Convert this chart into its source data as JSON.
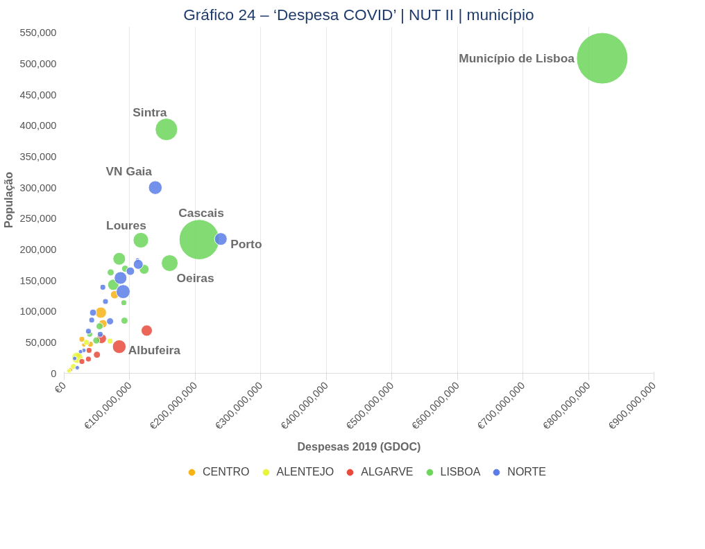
{
  "chart_data": {
    "type": "bubble",
    "title": "Gráfico 24 – ‘Despesa COVID’ | NUT II | município",
    "xlabel": "Despesas 2019 (GDOC)",
    "ylabel": "População",
    "xlim": [
      0,
      900000000
    ],
    "ylim": [
      0,
      560000
    ],
    "xticks": [
      {
        "value": 0,
        "label": "€0"
      },
      {
        "value": 100000000,
        "label": "€100,000,000"
      },
      {
        "value": 200000000,
        "label": "€200,000,000"
      },
      {
        "value": 300000000,
        "label": "€300,000,000"
      },
      {
        "value": 400000000,
        "label": "€400,000,000"
      },
      {
        "value": 500000000,
        "label": "€500,000,000"
      },
      {
        "value": 600000000,
        "label": "€600,000,000"
      },
      {
        "value": 700000000,
        "label": "€700,000,000"
      },
      {
        "value": 800000000,
        "label": "€800,000,000"
      },
      {
        "value": 900000000,
        "label": "€900,000,000"
      }
    ],
    "yticks": [
      0,
      {
        "value": 50000,
        "label": "50,000"
      },
      {
        "value": 100000,
        "label": "100,000"
      },
      {
        "value": 150000,
        "label": "150,000"
      },
      {
        "value": 200000,
        "label": "200,000"
      },
      {
        "value": 250000,
        "label": "250,000"
      },
      {
        "value": 300000,
        "label": "300,000"
      },
      {
        "value": 350000,
        "label": "350,000"
      },
      {
        "value": 400000,
        "label": "400,000"
      },
      {
        "value": 450000,
        "label": "450,000"
      },
      {
        "value": 500000,
        "label": "500,000"
      },
      {
        "value": 550000,
        "label": "550,000"
      }
    ],
    "grid": "x",
    "legend": "bottom",
    "series": [
      {
        "name": "CENTRO",
        "color": "#f5b316",
        "x": [
          77000000,
          56000000,
          59000000,
          27000000,
          30000000,
          10000000,
          40000000,
          22000000
        ],
        "values": [
          127000,
          98000,
          80000,
          55000,
          46000,
          6000,
          47000,
          29000
        ],
        "sizes": [
          0.026,
          0.047,
          0.026,
          0.012,
          0.007,
          0.007,
          0.012,
          0.007
        ]
      },
      {
        "name": "ALENTEJO",
        "color": "#e8f53a",
        "x": [
          70000000,
          20000000,
          14000000,
          7000000,
          34000000
        ],
        "values": [
          52000,
          25000,
          11000,
          4000,
          50000
        ],
        "sizes": [
          0.012,
          0.047,
          0.012,
          0.007,
          0.012
        ]
      },
      {
        "name": "ALGARVE",
        "color": "#e84a3c",
        "x": [
          84000000,
          126000000,
          57000000,
          50000000,
          37000000,
          38000000,
          27000000
        ],
        "values": [
          43000,
          69000,
          56000,
          30000,
          23000,
          37000,
          19000
        ],
        "sizes": [
          0.07,
          0.047,
          0.036,
          0.018,
          0.012,
          0.012,
          0.012
        ]
      },
      {
        "name": "LISBOA",
        "color": "#6cd65a",
        "x": [
          821000000,
          156000000,
          206000000,
          117000000,
          161000000,
          84000000,
          122000000,
          93000000,
          71000000,
          75000000,
          91000000,
          92000000,
          54000000,
          49000000,
          39000000
        ],
        "values": [
          509000,
          394000,
          216000,
          215000,
          178000,
          185000,
          168000,
          169000,
          163000,
          143000,
          114000,
          85000,
          76000,
          53000,
          63000
        ],
        "sizes": [
          1,
          0.19,
          0.61,
          0.09,
          0.105,
          0.06,
          0.036,
          0.018,
          0.018,
          0.047,
          0.012,
          0.018,
          0.018,
          0.018,
          0.012
        ]
      },
      {
        "name": "NORTE",
        "color": "#5b7ce8",
        "x": [
          139000000,
          239000000,
          112000000,
          113000000,
          101000000,
          86000000,
          59000000,
          90000000,
          63000000,
          44000000,
          42000000,
          70000000,
          55000000,
          37000000,
          30000000,
          16000000,
          20000000,
          25000000
        ],
        "values": [
          300000,
          217000,
          183000,
          176000,
          165000,
          154000,
          139000,
          132000,
          116000,
          98000,
          86000,
          84000,
          63000,
          68000,
          37000,
          24000,
          9000,
          35000
        ],
        "sizes": [
          0.07,
          0.06,
          0.007,
          0.036,
          0.026,
          0.06,
          0.012,
          0.073,
          0.012,
          0.018,
          0.012,
          0.018,
          0.012,
          0.012,
          0.007,
          0.007,
          0.007,
          0.007
        ]
      }
    ],
    "annotations": [
      {
        "text": "Município de Lisboa",
        "x": 821000000,
        "y": 509000
      },
      {
        "text": "Sintra",
        "x": 156000000,
        "y": 394000
      },
      {
        "text": "VN Gaia",
        "x": 139000000,
        "y": 300000
      },
      {
        "text": "Cascais",
        "x": 206000000,
        "y": 216000
      },
      {
        "text": "Porto",
        "x": 239000000,
        "y": 217000
      },
      {
        "text": "Loures",
        "x": 117000000,
        "y": 215000
      },
      {
        "text": "Oeiras",
        "x": 161000000,
        "y": 178000
      },
      {
        "text": "Albufeira",
        "x": 84000000,
        "y": 43000
      }
    ]
  }
}
